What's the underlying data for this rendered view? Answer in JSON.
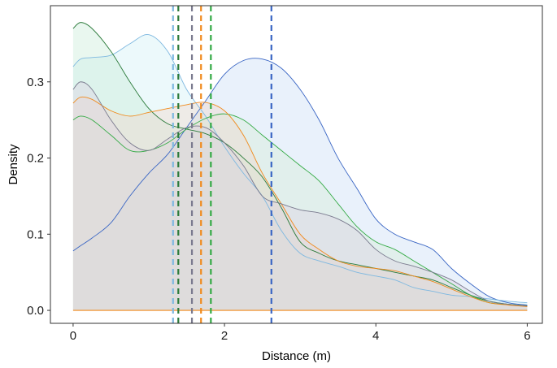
{
  "chart_data": {
    "type": "area",
    "xlabel": "Distance (m)",
    "ylabel": "Density",
    "xlim": [
      -0.3,
      6.2
    ],
    "ylim": [
      -0.017,
      0.4
    ],
    "xticks": [
      0,
      2,
      4,
      6
    ],
    "xtick_labels": [
      "0",
      "2",
      "4",
      "6"
    ],
    "yticks": [
      0.0,
      0.1,
      0.2,
      0.3
    ],
    "ytick_labels": [
      "0.0",
      "0.1",
      "0.2",
      "0.3"
    ],
    "grid": false,
    "legend": "none",
    "x": [
      0.0,
      0.1,
      0.25,
      0.5,
      0.75,
      1.0,
      1.25,
      1.5,
      1.75,
      2.0,
      2.25,
      2.5,
      2.75,
      3.0,
      3.25,
      3.5,
      3.75,
      4.0,
      4.25,
      4.5,
      4.75,
      5.0,
      5.25,
      5.5,
      5.75,
      6.0
    ],
    "series": [
      {
        "color": "#3A66C4",
        "fill": "#C6DAF5",
        "values": [
          0.078,
          0.085,
          0.095,
          0.115,
          0.15,
          0.18,
          0.205,
          0.24,
          0.275,
          0.31,
          0.328,
          0.33,
          0.318,
          0.29,
          0.25,
          0.2,
          0.16,
          0.12,
          0.1,
          0.09,
          0.08,
          0.055,
          0.035,
          0.018,
          0.01,
          0.007
        ],
        "mean": 2.62
      },
      {
        "color": "#7EB8E0",
        "fill": "#CDEFF4",
        "values": [
          0.32,
          0.33,
          0.332,
          0.335,
          0.35,
          0.362,
          0.34,
          0.29,
          0.255,
          0.215,
          0.18,
          0.15,
          0.105,
          0.075,
          0.065,
          0.058,
          0.05,
          0.045,
          0.04,
          0.03,
          0.025,
          0.02,
          0.018,
          0.015,
          0.012,
          0.01
        ],
        "mean": 1.32
      },
      {
        "color": "#2B7A3A",
        "fill": "#C4EAD4",
        "values": [
          0.37,
          0.378,
          0.37,
          0.34,
          0.3,
          0.265,
          0.245,
          0.238,
          0.232,
          0.22,
          0.2,
          0.175,
          0.135,
          0.09,
          0.075,
          0.065,
          0.06,
          0.055,
          0.05,
          0.045,
          0.04,
          0.03,
          0.02,
          0.012,
          0.008,
          0.006
        ],
        "mean": 1.39
      },
      {
        "color": "#33AA44",
        "fill": "#D6EDD6",
        "values": [
          0.25,
          0.255,
          0.25,
          0.23,
          0.21,
          0.21,
          0.22,
          0.238,
          0.252,
          0.258,
          0.25,
          0.23,
          0.21,
          0.19,
          0.17,
          0.14,
          0.11,
          0.09,
          0.08,
          0.065,
          0.05,
          0.035,
          0.02,
          0.01,
          0.008,
          0.006
        ],
        "mean": 1.82
      },
      {
        "color": "#F08A1C",
        "fill": "#F3D4C7",
        "values": [
          0.272,
          0.28,
          0.277,
          0.262,
          0.255,
          0.26,
          0.265,
          0.27,
          0.273,
          0.262,
          0.23,
          0.18,
          0.14,
          0.1,
          0.08,
          0.065,
          0.058,
          0.055,
          0.052,
          0.045,
          0.038,
          0.028,
          0.018,
          0.01,
          0.007,
          0.005
        ],
        "mean": 1.69
      },
      {
        "color": "#7A7A8E",
        "fill": "#DCCFE3",
        "values": [
          0.29,
          0.3,
          0.29,
          0.25,
          0.22,
          0.21,
          0.225,
          0.24,
          0.24,
          0.22,
          0.19,
          0.15,
          0.14,
          0.132,
          0.128,
          0.12,
          0.105,
          0.08,
          0.065,
          0.058,
          0.05,
          0.04,
          0.025,
          0.012,
          0.008,
          0.006
        ],
        "mean": 1.57
      }
    ]
  }
}
